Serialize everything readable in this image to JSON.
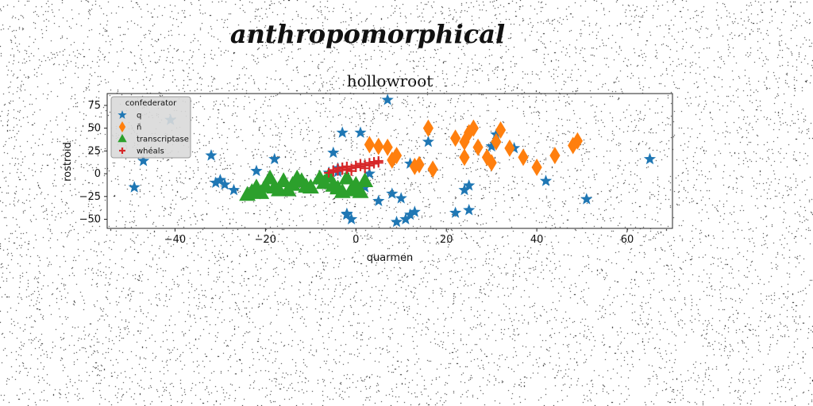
{
  "figure": {
    "suptitle": "anthropomorphical"
  },
  "chart_data": {
    "type": "scatter",
    "title": "hollowroot",
    "xlabel": "quarmen",
    "ylabel": "rostroid",
    "xlim": [
      -55,
      70
    ],
    "ylim": [
      -60,
      88
    ],
    "xticks": [
      -40,
      -20,
      0,
      20,
      40,
      60
    ],
    "xtick_labels": [
      "−40",
      "−20",
      "0",
      "20",
      "40",
      "60"
    ],
    "yticks": [
      -50,
      -25,
      0,
      25,
      50,
      75
    ],
    "yticks_labels": [
      "−50",
      "−25",
      "0",
      "25",
      "50",
      "75"
    ],
    "grid": false,
    "legend": {
      "title": "confederator",
      "placement": "upper-left"
    },
    "series": [
      {
        "name": "q",
        "marker": "star",
        "color": "#1f77b4",
        "points": [
          [
            -49,
            -15
          ],
          [
            -47,
            14
          ],
          [
            -41,
            59
          ],
          [
            -32,
            20
          ],
          [
            -31,
            -10
          ],
          [
            -30,
            -7
          ],
          [
            -29,
            -12
          ],
          [
            -27,
            -18
          ],
          [
            -22,
            3
          ],
          [
            -18,
            16
          ],
          [
            -8,
            -7
          ],
          [
            -6,
            1
          ],
          [
            -5,
            23
          ],
          [
            -4,
            2
          ],
          [
            -4,
            6
          ],
          [
            -3,
            45
          ],
          [
            -2,
            -45
          ],
          [
            -2,
            -44
          ],
          [
            -1,
            -50
          ],
          [
            1,
            45
          ],
          [
            2,
            -15
          ],
          [
            3,
            0
          ],
          [
            5,
            -30
          ],
          [
            7,
            81
          ],
          [
            8,
            -22
          ],
          [
            9,
            -53
          ],
          [
            10,
            -27
          ],
          [
            11,
            -50
          ],
          [
            12,
            -45
          ],
          [
            12,
            11
          ],
          [
            13,
            -42
          ],
          [
            16,
            35
          ],
          [
            22,
            -43
          ],
          [
            24,
            -18
          ],
          [
            25,
            -13
          ],
          [
            25,
            -40
          ],
          [
            30,
            30
          ],
          [
            31,
            43
          ],
          [
            35,
            28
          ],
          [
            42,
            -8
          ],
          [
            51,
            -28
          ],
          [
            65,
            16
          ]
        ]
      },
      {
        "name": "ñ",
        "marker": "thin_diamond",
        "color": "#ff7f0e",
        "points": [
          [
            3,
            32
          ],
          [
            5,
            30
          ],
          [
            7,
            29
          ],
          [
            8,
            15
          ],
          [
            9,
            20
          ],
          [
            13,
            8
          ],
          [
            14,
            10
          ],
          [
            16,
            50
          ],
          [
            17,
            5
          ],
          [
            22,
            39
          ],
          [
            24,
            35
          ],
          [
            24,
            18
          ],
          [
            25,
            45
          ],
          [
            26,
            50
          ],
          [
            27,
            29
          ],
          [
            29,
            18
          ],
          [
            30,
            12
          ],
          [
            31,
            35
          ],
          [
            32,
            48
          ],
          [
            34,
            28
          ],
          [
            37,
            18
          ],
          [
            40,
            7
          ],
          [
            44,
            20
          ],
          [
            48,
            31
          ],
          [
            49,
            36
          ]
        ]
      },
      {
        "name": "transcriptase",
        "marker": "triangle_up",
        "color": "#2ca02c",
        "points": [
          [
            -24,
            -23
          ],
          [
            -23,
            -20
          ],
          [
            -22,
            -15
          ],
          [
            -21,
            -21
          ],
          [
            -20,
            -14
          ],
          [
            -19,
            -5
          ],
          [
            -18,
            -15
          ],
          [
            -17,
            -18
          ],
          [
            -16,
            -8
          ],
          [
            -15,
            -18
          ],
          [
            -14,
            -12
          ],
          [
            -13,
            -5
          ],
          [
            -12,
            -8
          ],
          [
            -11,
            -14
          ],
          [
            -10,
            -15
          ],
          [
            -8,
            -5
          ],
          [
            -7,
            -10
          ],
          [
            -6,
            -3
          ],
          [
            -5,
            -13
          ],
          [
            -4,
            -16
          ],
          [
            -3,
            -20
          ],
          [
            -2,
            -5
          ],
          [
            -1,
            -18
          ],
          [
            0,
            -12
          ],
          [
            1,
            -20
          ],
          [
            2,
            -8
          ]
        ]
      },
      {
        "name": "whéals",
        "marker": "plus",
        "color": "#d62728",
        "points": [
          [
            -6,
            1
          ],
          [
            -5,
            2
          ],
          [
            -5,
            4
          ],
          [
            -4,
            3
          ],
          [
            -3,
            4
          ],
          [
            -3,
            7
          ],
          [
            -2,
            5
          ],
          [
            -2,
            8
          ],
          [
            -1,
            6
          ],
          [
            0,
            7
          ],
          [
            0,
            9
          ],
          [
            1,
            8
          ],
          [
            1,
            11
          ],
          [
            2,
            10
          ],
          [
            3,
            12
          ],
          [
            3,
            9
          ],
          [
            4,
            13
          ],
          [
            4,
            11
          ],
          [
            5,
            12
          ],
          [
            -4,
            6
          ],
          [
            -1,
            3
          ],
          [
            2,
            6
          ],
          [
            5,
            14
          ]
        ]
      }
    ]
  }
}
